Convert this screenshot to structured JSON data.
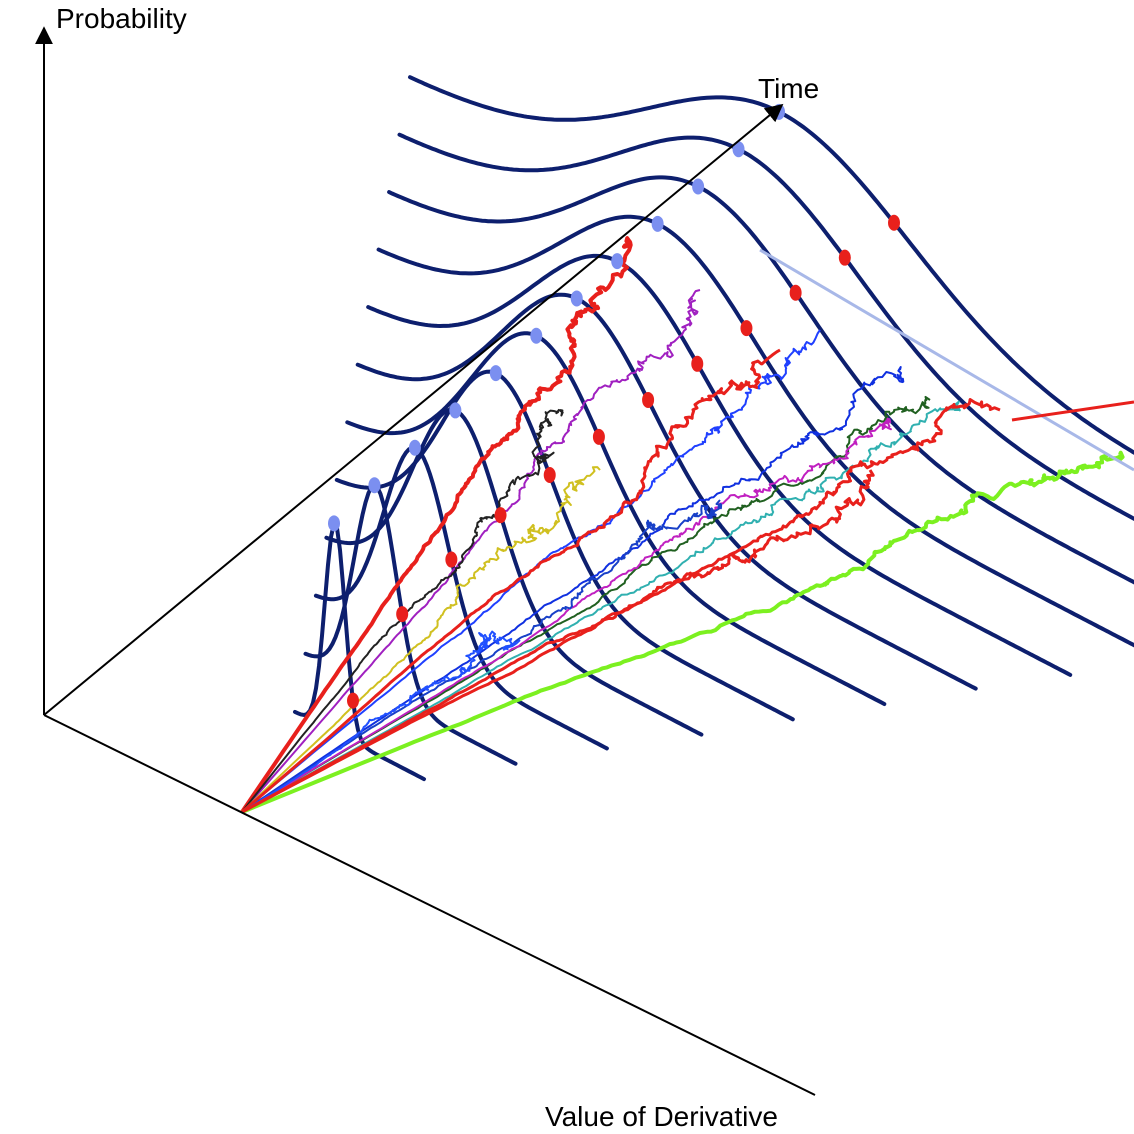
{
  "labels": {
    "y_axis": "Probability",
    "time_axis": "Time",
    "x_axis": "Value of Derivative"
  }
}
